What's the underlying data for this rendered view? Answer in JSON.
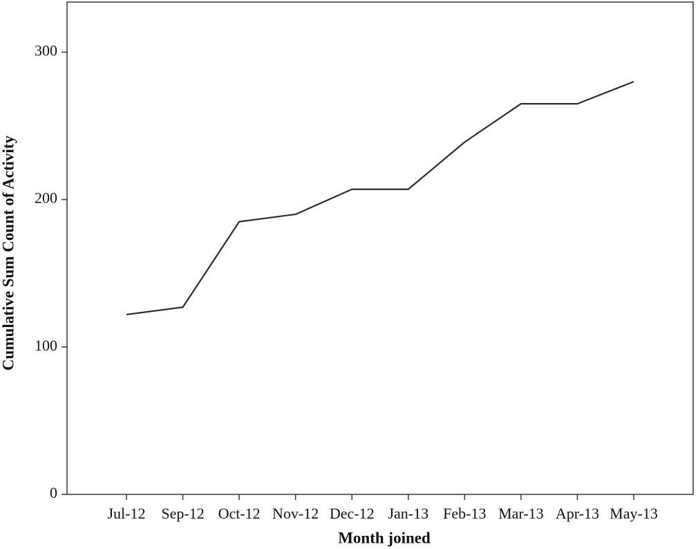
{
  "chart_data": {
    "type": "line",
    "x_label": "Month joined",
    "y_label": "Cumulative Sum Count of Activity",
    "categories": [
      "Jul-12",
      "Sep-12",
      "Oct-12",
      "Nov-12",
      "Dec-12",
      "Jan-13",
      "Feb-13",
      "Mar-13",
      "Apr-13",
      "May-13"
    ],
    "values": [
      122,
      127,
      185,
      190,
      207,
      207,
      239,
      265,
      265,
      280
    ],
    "color": "#2b2b2b",
    "ylim": [
      0,
      334
    ],
    "yticks": [
      0,
      100,
      200,
      300
    ],
    "grid": false
  }
}
